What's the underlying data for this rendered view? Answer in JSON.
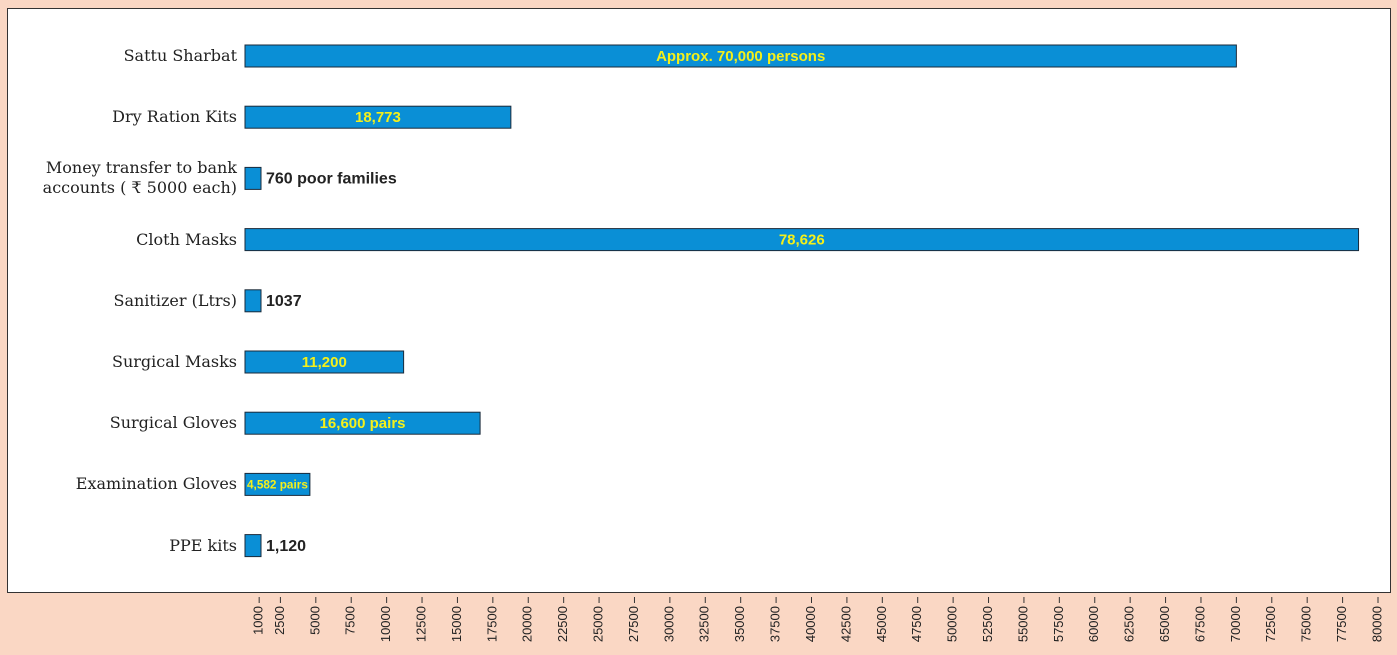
{
  "chart_data": {
    "type": "bar",
    "orientation": "horizontal",
    "categories": [
      "Sattu Sharbat",
      "Dry Ration Kits",
      "Money transfer to bank accounts ( ₹ 5000 each)",
      "Cloth Masks",
      "Sanitizer (Ltrs)",
      "Surgical Masks",
      "Surgical Gloves",
      "Examination Gloves",
      "PPE kits"
    ],
    "values": [
      70000,
      18773,
      760,
      78626,
      1037,
      11200,
      16600,
      4582,
      1120
    ],
    "value_labels": [
      "Approx. 70,000 persons",
      "18,773",
      "760 poor families",
      "78,626",
      "1037",
      "11,200",
      "16,600 pairs",
      "4,582 pairs",
      "1,120"
    ],
    "color": "#0a8fd6",
    "xlim": [
      0,
      80000
    ],
    "xticks": [
      1000,
      2500,
      5000,
      7500,
      10000,
      12500,
      15000,
      17500,
      20000,
      22500,
      25000,
      27500,
      30000,
      32500,
      35000,
      37500,
      40000,
      42500,
      45000,
      47500,
      50000,
      52500,
      55000,
      57500,
      60000,
      62500,
      65000,
      67500,
      70000,
      72500,
      75000,
      77500,
      80000
    ]
  }
}
